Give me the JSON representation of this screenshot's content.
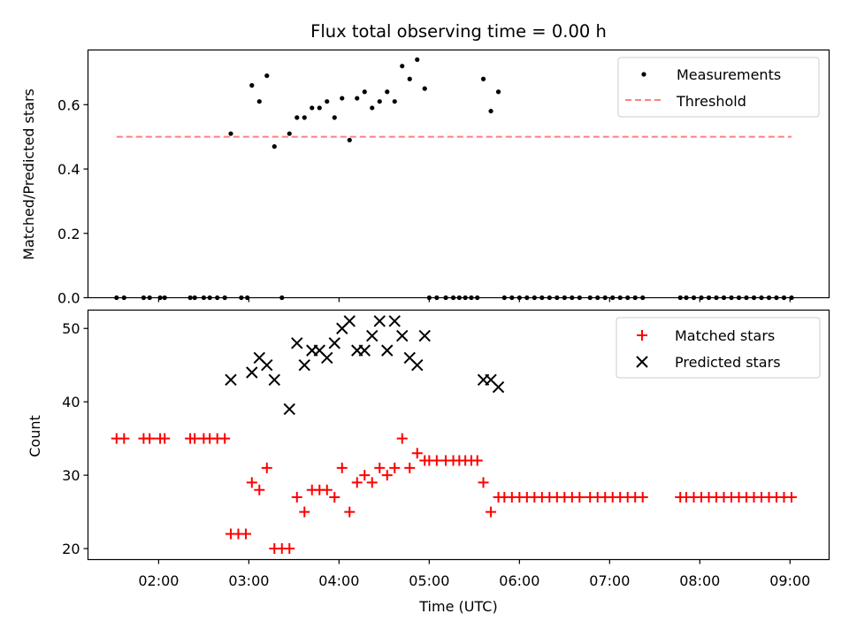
{
  "chart_data": [
    {
      "type": "scatter",
      "title": "Flux total observing time = 0.00 h",
      "xlabel": "",
      "ylabel": "Matched/Predicted stars",
      "xlim": [
        "01:13",
        "09:26"
      ],
      "ylim": [
        0,
        0.77
      ],
      "yticks": [
        0.0,
        0.2,
        0.4,
        0.6
      ],
      "ytick_labels": [
        "0.0",
        "0.2",
        "0.4",
        "0.6"
      ],
      "legend_position": "top-right",
      "series": [
        {
          "name": "Measurements",
          "marker": "dot",
          "color": "#000000",
          "points": [
            [
              "01:32",
              0.0
            ],
            [
              "01:37",
              0.0
            ],
            [
              "01:50",
              0.0
            ],
            [
              "01:54",
              0.0
            ],
            [
              "02:01",
              0.0
            ],
            [
              "02:04",
              0.0
            ],
            [
              "02:21",
              0.0
            ],
            [
              "02:24",
              0.0
            ],
            [
              "02:30",
              0.0
            ],
            [
              "02:34",
              0.0
            ],
            [
              "02:39",
              0.0
            ],
            [
              "02:44",
              0.0
            ],
            [
              "02:48",
              0.51
            ],
            [
              "02:55",
              0.0
            ],
            [
              "02:59",
              0.0
            ],
            [
              "03:02",
              0.66
            ],
            [
              "03:07",
              0.61
            ],
            [
              "03:12",
              0.69
            ],
            [
              "03:17",
              0.47
            ],
            [
              "03:22",
              0.0
            ],
            [
              "03:27",
              0.51
            ],
            [
              "03:32",
              0.56
            ],
            [
              "03:37",
              0.56
            ],
            [
              "03:42",
              0.59
            ],
            [
              "03:47",
              0.59
            ],
            [
              "03:52",
              0.61
            ],
            [
              "03:57",
              0.56
            ],
            [
              "04:02",
              0.62
            ],
            [
              "04:07",
              0.49
            ],
            [
              "04:12",
              0.62
            ],
            [
              "04:17",
              0.64
            ],
            [
              "04:22",
              0.59
            ],
            [
              "04:27",
              0.61
            ],
            [
              "04:32",
              0.64
            ],
            [
              "04:37",
              0.61
            ],
            [
              "04:42",
              0.72
            ],
            [
              "04:47",
              0.68
            ],
            [
              "04:52",
              0.74
            ],
            [
              "04:57",
              0.65
            ],
            [
              "05:00",
              0.0
            ],
            [
              "05:05",
              0.0
            ],
            [
              "05:11",
              0.0
            ],
            [
              "05:16",
              0.0
            ],
            [
              "05:20",
              0.0
            ],
            [
              "05:24",
              0.0
            ],
            [
              "05:28",
              0.0
            ],
            [
              "05:32",
              0.0
            ],
            [
              "05:36",
              0.68
            ],
            [
              "05:41",
              0.58
            ],
            [
              "05:46",
              0.64
            ],
            [
              "05:50",
              0.0
            ],
            [
              "05:55",
              0.0
            ],
            [
              "06:00",
              0.0
            ],
            [
              "06:05",
              0.0
            ],
            [
              "06:10",
              0.0
            ],
            [
              "06:15",
              0.0
            ],
            [
              "06:20",
              0.0
            ],
            [
              "06:25",
              0.0
            ],
            [
              "06:30",
              0.0
            ],
            [
              "06:35",
              0.0
            ],
            [
              "06:40",
              0.0
            ],
            [
              "06:47",
              0.0
            ],
            [
              "06:52",
              0.0
            ],
            [
              "06:57",
              0.0
            ],
            [
              "07:02",
              0.0
            ],
            [
              "07:07",
              0.0
            ],
            [
              "07:12",
              0.0
            ],
            [
              "07:17",
              0.0
            ],
            [
              "07:22",
              0.0
            ],
            [
              "07:47",
              0.0
            ],
            [
              "07:51",
              0.0
            ],
            [
              "07:56",
              0.0
            ],
            [
              "08:01",
              0.0
            ],
            [
              "08:06",
              0.0
            ],
            [
              "08:11",
              0.0
            ],
            [
              "08:16",
              0.0
            ],
            [
              "08:21",
              0.0
            ],
            [
              "08:26",
              0.0
            ],
            [
              "08:31",
              0.0
            ],
            [
              "08:36",
              0.0
            ],
            [
              "08:41",
              0.0
            ],
            [
              "08:46",
              0.0
            ],
            [
              "08:51",
              0.0
            ],
            [
              "08:56",
              0.0
            ],
            [
              "09:01",
              0.0
            ]
          ]
        },
        {
          "name": "Threshold",
          "type": "line",
          "style": "dashed",
          "color": "#ff7f7f",
          "points": [
            [
              "01:32",
              0.5
            ],
            [
              "09:01",
              0.5
            ]
          ]
        }
      ]
    },
    {
      "type": "scatter",
      "title": "",
      "xlabel": "Time (UTC)",
      "ylabel": "Count",
      "xlim": [
        "01:13",
        "09:26"
      ],
      "ylim": [
        18.5,
        52.5
      ],
      "yticks": [
        20,
        30,
        40,
        50
      ],
      "ytick_labels": [
        "20",
        "30",
        "40",
        "50"
      ],
      "xticks": [
        "02:00",
        "03:00",
        "04:00",
        "05:00",
        "06:00",
        "07:00",
        "08:00",
        "09:00"
      ],
      "xtick_labels": [
        "02:00",
        "03:00",
        "04:00",
        "05:00",
        "06:00",
        "07:00",
        "08:00",
        "09:00"
      ],
      "legend_position": "top-right",
      "series": [
        {
          "name": "Matched stars",
          "marker": "plus",
          "color": "#ff0000",
          "points": [
            [
              "01:32",
              35
            ],
            [
              "01:37",
              35
            ],
            [
              "01:50",
              35
            ],
            [
              "01:54",
              35
            ],
            [
              "02:01",
              35
            ],
            [
              "02:04",
              35
            ],
            [
              "02:21",
              35
            ],
            [
              "02:24",
              35
            ],
            [
              "02:30",
              35
            ],
            [
              "02:34",
              35
            ],
            [
              "02:39",
              35
            ],
            [
              "02:44",
              35
            ],
            [
              "02:48",
              22
            ],
            [
              "02:53",
              22
            ],
            [
              "02:58",
              22
            ],
            [
              "03:02",
              29
            ],
            [
              "03:07",
              28
            ],
            [
              "03:12",
              31
            ],
            [
              "03:17",
              20
            ],
            [
              "03:22",
              20
            ],
            [
              "03:27",
              20
            ],
            [
              "03:32",
              27
            ],
            [
              "03:37",
              25
            ],
            [
              "03:42",
              28
            ],
            [
              "03:47",
              28
            ],
            [
              "03:52",
              28
            ],
            [
              "03:57",
              27
            ],
            [
              "04:02",
              31
            ],
            [
              "04:07",
              25
            ],
            [
              "04:12",
              29
            ],
            [
              "04:17",
              30
            ],
            [
              "04:22",
              29
            ],
            [
              "04:27",
              31
            ],
            [
              "04:32",
              30
            ],
            [
              "04:37",
              31
            ],
            [
              "04:42",
              35
            ],
            [
              "04:47",
              31
            ],
            [
              "04:52",
              33
            ],
            [
              "04:57",
              32
            ],
            [
              "05:00",
              32
            ],
            [
              "05:05",
              32
            ],
            [
              "05:11",
              32
            ],
            [
              "05:16",
              32
            ],
            [
              "05:20",
              32
            ],
            [
              "05:24",
              32
            ],
            [
              "05:28",
              32
            ],
            [
              "05:32",
              32
            ],
            [
              "05:36",
              29
            ],
            [
              "05:41",
              25
            ],
            [
              "05:46",
              27
            ],
            [
              "05:50",
              27
            ],
            [
              "05:55",
              27
            ],
            [
              "06:00",
              27
            ],
            [
              "06:05",
              27
            ],
            [
              "06:10",
              27
            ],
            [
              "06:15",
              27
            ],
            [
              "06:20",
              27
            ],
            [
              "06:25",
              27
            ],
            [
              "06:30",
              27
            ],
            [
              "06:35",
              27
            ],
            [
              "06:40",
              27
            ],
            [
              "06:47",
              27
            ],
            [
              "06:52",
              27
            ],
            [
              "06:57",
              27
            ],
            [
              "07:02",
              27
            ],
            [
              "07:07",
              27
            ],
            [
              "07:12",
              27
            ],
            [
              "07:17",
              27
            ],
            [
              "07:22",
              27
            ],
            [
              "07:47",
              27
            ],
            [
              "07:51",
              27
            ],
            [
              "07:56",
              27
            ],
            [
              "08:01",
              27
            ],
            [
              "08:06",
              27
            ],
            [
              "08:11",
              27
            ],
            [
              "08:16",
              27
            ],
            [
              "08:21",
              27
            ],
            [
              "08:26",
              27
            ],
            [
              "08:31",
              27
            ],
            [
              "08:36",
              27
            ],
            [
              "08:41",
              27
            ],
            [
              "08:46",
              27
            ],
            [
              "08:51",
              27
            ],
            [
              "08:56",
              27
            ],
            [
              "09:01",
              27
            ]
          ]
        },
        {
          "name": "Predicted stars",
          "marker": "x",
          "color": "#000000",
          "points": [
            [
              "02:48",
              43
            ],
            [
              "03:02",
              44
            ],
            [
              "03:07",
              46
            ],
            [
              "03:12",
              45
            ],
            [
              "03:17",
              43
            ],
            [
              "03:27",
              39
            ],
            [
              "03:32",
              48
            ],
            [
              "03:37",
              45
            ],
            [
              "03:42",
              47
            ],
            [
              "03:47",
              47
            ],
            [
              "03:52",
              46
            ],
            [
              "03:57",
              48
            ],
            [
              "04:02",
              50
            ],
            [
              "04:07",
              51
            ],
            [
              "04:12",
              47
            ],
            [
              "04:17",
              47
            ],
            [
              "04:22",
              49
            ],
            [
              "04:27",
              51
            ],
            [
              "04:32",
              47
            ],
            [
              "04:37",
              51
            ],
            [
              "04:42",
              49
            ],
            [
              "04:47",
              46
            ],
            [
              "04:52",
              45
            ],
            [
              "04:57",
              49
            ],
            [
              "05:36",
              43
            ],
            [
              "05:41",
              43
            ],
            [
              "05:46",
              42
            ]
          ]
        }
      ]
    }
  ]
}
